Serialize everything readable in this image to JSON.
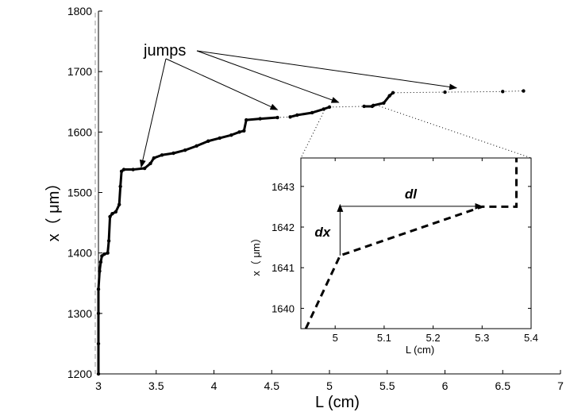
{
  "chart_data": [
    {
      "type": "line",
      "title": "",
      "xlabel": "L (cm)",
      "ylabel": "x（ μm）",
      "xlim": [
        3,
        7
      ],
      "ylim": [
        1200,
        1800
      ],
      "xticks": [
        "3",
        "3.5",
        "4",
        "4.5",
        "5",
        "5.5",
        "6",
        "6.5",
        "7"
      ],
      "yticks": [
        "1200",
        "1300",
        "1400",
        "1500",
        "1600",
        "1700",
        "1800"
      ],
      "grid": false,
      "series": [
        {
          "style": "dotted-with-markers",
          "points": [
            [
              3.0,
              1200
            ],
            [
              3.0,
              1250
            ],
            [
              3.0,
              1300
            ],
            [
              3.0,
              1340
            ],
            [
              3.01,
              1370
            ],
            [
              3.02,
              1385
            ],
            [
              3.03,
              1395
            ],
            [
              3.05,
              1398
            ],
            [
              3.08,
              1400
            ],
            [
              3.09,
              1420
            ],
            [
              3.1,
              1460
            ],
            [
              3.12,
              1465
            ],
            [
              3.15,
              1468
            ],
            [
              3.18,
              1480
            ],
            [
              3.19,
              1510
            ],
            [
              3.2,
              1535
            ],
            [
              3.22,
              1538
            ],
            [
              3.3,
              1538
            ],
            [
              3.4,
              1540
            ],
            [
              3.45,
              1548
            ],
            [
              3.48,
              1557
            ],
            [
              3.55,
              1562
            ],
            [
              3.65,
              1565
            ],
            [
              3.75,
              1570
            ],
            [
              3.85,
              1577
            ],
            [
              3.95,
              1585
            ],
            [
              4.05,
              1590
            ],
            [
              4.15,
              1595
            ],
            [
              4.22,
              1600
            ],
            [
              4.26,
              1602
            ],
            [
              4.28,
              1620
            ],
            [
              4.4,
              1622
            ],
            [
              4.55,
              1624
            ],
            [
              4.66,
              1625
            ],
            [
              4.72,
              1628
            ],
            [
              4.85,
              1632
            ],
            [
              4.95,
              1638
            ],
            [
              5.0,
              1641.3
            ],
            [
              5.3,
              1642.5
            ],
            [
              5.37,
              1642.5
            ],
            [
              5.38,
              1644
            ],
            [
              5.47,
              1648
            ],
            [
              5.52,
              1660
            ],
            [
              5.55,
              1665
            ],
            [
              6.0,
              1666
            ],
            [
              6.5,
              1667
            ],
            [
              6.68,
              1668
            ]
          ]
        }
      ],
      "annotations": [
        {
          "text": "jumps"
        }
      ]
    },
    {
      "type": "line",
      "title": "",
      "xlabel": "L (cm)",
      "ylabel": "x（ μm）",
      "xlim": [
        4.93,
        5.4
      ],
      "ylim": [
        1639.5,
        1643.7
      ],
      "xticks": [
        "5",
        "5.1",
        "5.2",
        "5.3",
        "5.4"
      ],
      "yticks": [
        "1640",
        "1641",
        "1642",
        "1643"
      ],
      "grid": false,
      "series": [
        {
          "style": "dashed",
          "points": [
            [
              4.94,
              1639.5
            ],
            [
              5.01,
              1641.3
            ],
            [
              5.3,
              1642.5
            ],
            [
              5.37,
              1642.5
            ],
            [
              5.37,
              1643.7
            ]
          ]
        }
      ],
      "annotations": [
        {
          "text": "dx"
        },
        {
          "text": "dl"
        }
      ]
    }
  ]
}
